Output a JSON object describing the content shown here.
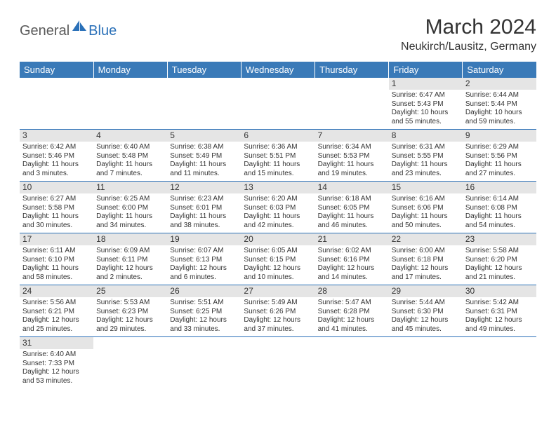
{
  "logo": {
    "general": "General",
    "blue": "Blue"
  },
  "header": {
    "month_title": "March 2024",
    "location": "Neukirch/Lausitz, Germany"
  },
  "colors": {
    "header_bg": "#3a7ab8",
    "header_text": "#ffffff",
    "daynum_bg": "#e5e5e5",
    "border": "#2a70b8",
    "logo_general": "#5a5a5a",
    "logo_blue": "#2a70b8"
  },
  "weekdays": [
    "Sunday",
    "Monday",
    "Tuesday",
    "Wednesday",
    "Thursday",
    "Friday",
    "Saturday"
  ],
  "weeks": [
    [
      null,
      null,
      null,
      null,
      null,
      {
        "n": "1",
        "sr": "Sunrise: 6:47 AM",
        "ss": "Sunset: 5:43 PM",
        "d1": "Daylight: 10 hours",
        "d2": "and 55 minutes."
      },
      {
        "n": "2",
        "sr": "Sunrise: 6:44 AM",
        "ss": "Sunset: 5:44 PM",
        "d1": "Daylight: 10 hours",
        "d2": "and 59 minutes."
      }
    ],
    [
      {
        "n": "3",
        "sr": "Sunrise: 6:42 AM",
        "ss": "Sunset: 5:46 PM",
        "d1": "Daylight: 11 hours",
        "d2": "and 3 minutes."
      },
      {
        "n": "4",
        "sr": "Sunrise: 6:40 AM",
        "ss": "Sunset: 5:48 PM",
        "d1": "Daylight: 11 hours",
        "d2": "and 7 minutes."
      },
      {
        "n": "5",
        "sr": "Sunrise: 6:38 AM",
        "ss": "Sunset: 5:49 PM",
        "d1": "Daylight: 11 hours",
        "d2": "and 11 minutes."
      },
      {
        "n": "6",
        "sr": "Sunrise: 6:36 AM",
        "ss": "Sunset: 5:51 PM",
        "d1": "Daylight: 11 hours",
        "d2": "and 15 minutes."
      },
      {
        "n": "7",
        "sr": "Sunrise: 6:34 AM",
        "ss": "Sunset: 5:53 PM",
        "d1": "Daylight: 11 hours",
        "d2": "and 19 minutes."
      },
      {
        "n": "8",
        "sr": "Sunrise: 6:31 AM",
        "ss": "Sunset: 5:55 PM",
        "d1": "Daylight: 11 hours",
        "d2": "and 23 minutes."
      },
      {
        "n": "9",
        "sr": "Sunrise: 6:29 AM",
        "ss": "Sunset: 5:56 PM",
        "d1": "Daylight: 11 hours",
        "d2": "and 27 minutes."
      }
    ],
    [
      {
        "n": "10",
        "sr": "Sunrise: 6:27 AM",
        "ss": "Sunset: 5:58 PM",
        "d1": "Daylight: 11 hours",
        "d2": "and 30 minutes."
      },
      {
        "n": "11",
        "sr": "Sunrise: 6:25 AM",
        "ss": "Sunset: 6:00 PM",
        "d1": "Daylight: 11 hours",
        "d2": "and 34 minutes."
      },
      {
        "n": "12",
        "sr": "Sunrise: 6:23 AM",
        "ss": "Sunset: 6:01 PM",
        "d1": "Daylight: 11 hours",
        "d2": "and 38 minutes."
      },
      {
        "n": "13",
        "sr": "Sunrise: 6:20 AM",
        "ss": "Sunset: 6:03 PM",
        "d1": "Daylight: 11 hours",
        "d2": "and 42 minutes."
      },
      {
        "n": "14",
        "sr": "Sunrise: 6:18 AM",
        "ss": "Sunset: 6:05 PM",
        "d1": "Daylight: 11 hours",
        "d2": "and 46 minutes."
      },
      {
        "n": "15",
        "sr": "Sunrise: 6:16 AM",
        "ss": "Sunset: 6:06 PM",
        "d1": "Daylight: 11 hours",
        "d2": "and 50 minutes."
      },
      {
        "n": "16",
        "sr": "Sunrise: 6:14 AM",
        "ss": "Sunset: 6:08 PM",
        "d1": "Daylight: 11 hours",
        "d2": "and 54 minutes."
      }
    ],
    [
      {
        "n": "17",
        "sr": "Sunrise: 6:11 AM",
        "ss": "Sunset: 6:10 PM",
        "d1": "Daylight: 11 hours",
        "d2": "and 58 minutes."
      },
      {
        "n": "18",
        "sr": "Sunrise: 6:09 AM",
        "ss": "Sunset: 6:11 PM",
        "d1": "Daylight: 12 hours",
        "d2": "and 2 minutes."
      },
      {
        "n": "19",
        "sr": "Sunrise: 6:07 AM",
        "ss": "Sunset: 6:13 PM",
        "d1": "Daylight: 12 hours",
        "d2": "and 6 minutes."
      },
      {
        "n": "20",
        "sr": "Sunrise: 6:05 AM",
        "ss": "Sunset: 6:15 PM",
        "d1": "Daylight: 12 hours",
        "d2": "and 10 minutes."
      },
      {
        "n": "21",
        "sr": "Sunrise: 6:02 AM",
        "ss": "Sunset: 6:16 PM",
        "d1": "Daylight: 12 hours",
        "d2": "and 14 minutes."
      },
      {
        "n": "22",
        "sr": "Sunrise: 6:00 AM",
        "ss": "Sunset: 6:18 PM",
        "d1": "Daylight: 12 hours",
        "d2": "and 17 minutes."
      },
      {
        "n": "23",
        "sr": "Sunrise: 5:58 AM",
        "ss": "Sunset: 6:20 PM",
        "d1": "Daylight: 12 hours",
        "d2": "and 21 minutes."
      }
    ],
    [
      {
        "n": "24",
        "sr": "Sunrise: 5:56 AM",
        "ss": "Sunset: 6:21 PM",
        "d1": "Daylight: 12 hours",
        "d2": "and 25 minutes."
      },
      {
        "n": "25",
        "sr": "Sunrise: 5:53 AM",
        "ss": "Sunset: 6:23 PM",
        "d1": "Daylight: 12 hours",
        "d2": "and 29 minutes."
      },
      {
        "n": "26",
        "sr": "Sunrise: 5:51 AM",
        "ss": "Sunset: 6:25 PM",
        "d1": "Daylight: 12 hours",
        "d2": "and 33 minutes."
      },
      {
        "n": "27",
        "sr": "Sunrise: 5:49 AM",
        "ss": "Sunset: 6:26 PM",
        "d1": "Daylight: 12 hours",
        "d2": "and 37 minutes."
      },
      {
        "n": "28",
        "sr": "Sunrise: 5:47 AM",
        "ss": "Sunset: 6:28 PM",
        "d1": "Daylight: 12 hours",
        "d2": "and 41 minutes."
      },
      {
        "n": "29",
        "sr": "Sunrise: 5:44 AM",
        "ss": "Sunset: 6:30 PM",
        "d1": "Daylight: 12 hours",
        "d2": "and 45 minutes."
      },
      {
        "n": "30",
        "sr": "Sunrise: 5:42 AM",
        "ss": "Sunset: 6:31 PM",
        "d1": "Daylight: 12 hours",
        "d2": "and 49 minutes."
      }
    ],
    [
      {
        "n": "31",
        "sr": "Sunrise: 6:40 AM",
        "ss": "Sunset: 7:33 PM",
        "d1": "Daylight: 12 hours",
        "d2": "and 53 minutes."
      },
      null,
      null,
      null,
      null,
      null,
      null
    ]
  ]
}
